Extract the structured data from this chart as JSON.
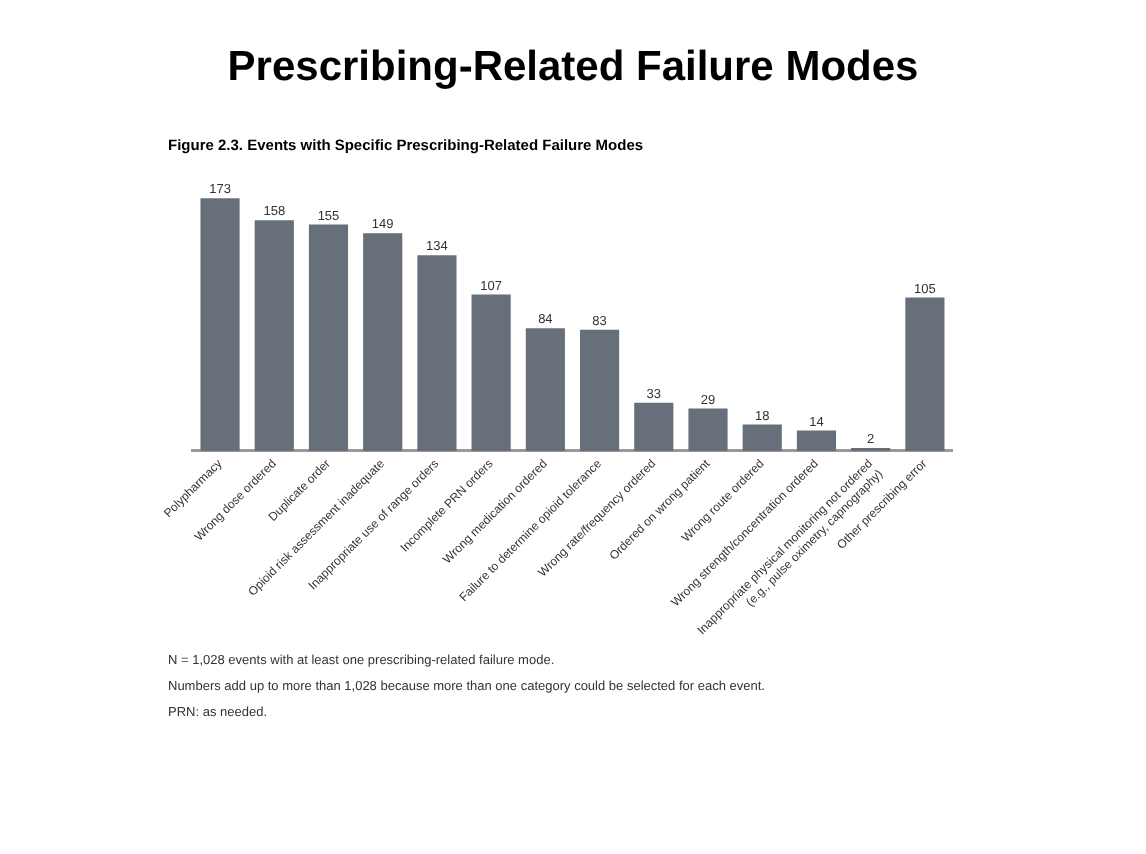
{
  "chart_data": {
    "type": "bar",
    "title": "Prescribing-Related Failure Modes",
    "subtitle": "Figure 2.3. Events with Specific Prescribing-Related Failure Modes",
    "categories": [
      "Polypharmacy",
      "Wrong dose ordered",
      "Duplicate order",
      "Opioid risk assessment inadequate",
      "Inappropriate use of range orders",
      "Incomplete PRN orders",
      "Wrong medication ordered",
      "Failure to determine opioid tolerance",
      "Wrong rate/frequency ordered",
      "Ordered on wrong patient",
      "Wrong route ordered",
      "Wrong strength/concentration ordered",
      "Inappropriate physical monitoring not ordered\n(e.g., pulse oximetry, capnography)",
      "Other prescribing error"
    ],
    "values": [
      173,
      158,
      155,
      149,
      134,
      107,
      84,
      83,
      33,
      29,
      18,
      14,
      2,
      105
    ],
    "color": "#67707a",
    "data_labels": true,
    "grid": false,
    "legend": false,
    "tick_labels": "x",
    "annotations": [
      "N = 1,028 events with at least one prescribing-related failure mode.",
      "Numbers add up to more than 1,028 because more than one category could be selected for each event.",
      "PRN: as needed."
    ]
  }
}
